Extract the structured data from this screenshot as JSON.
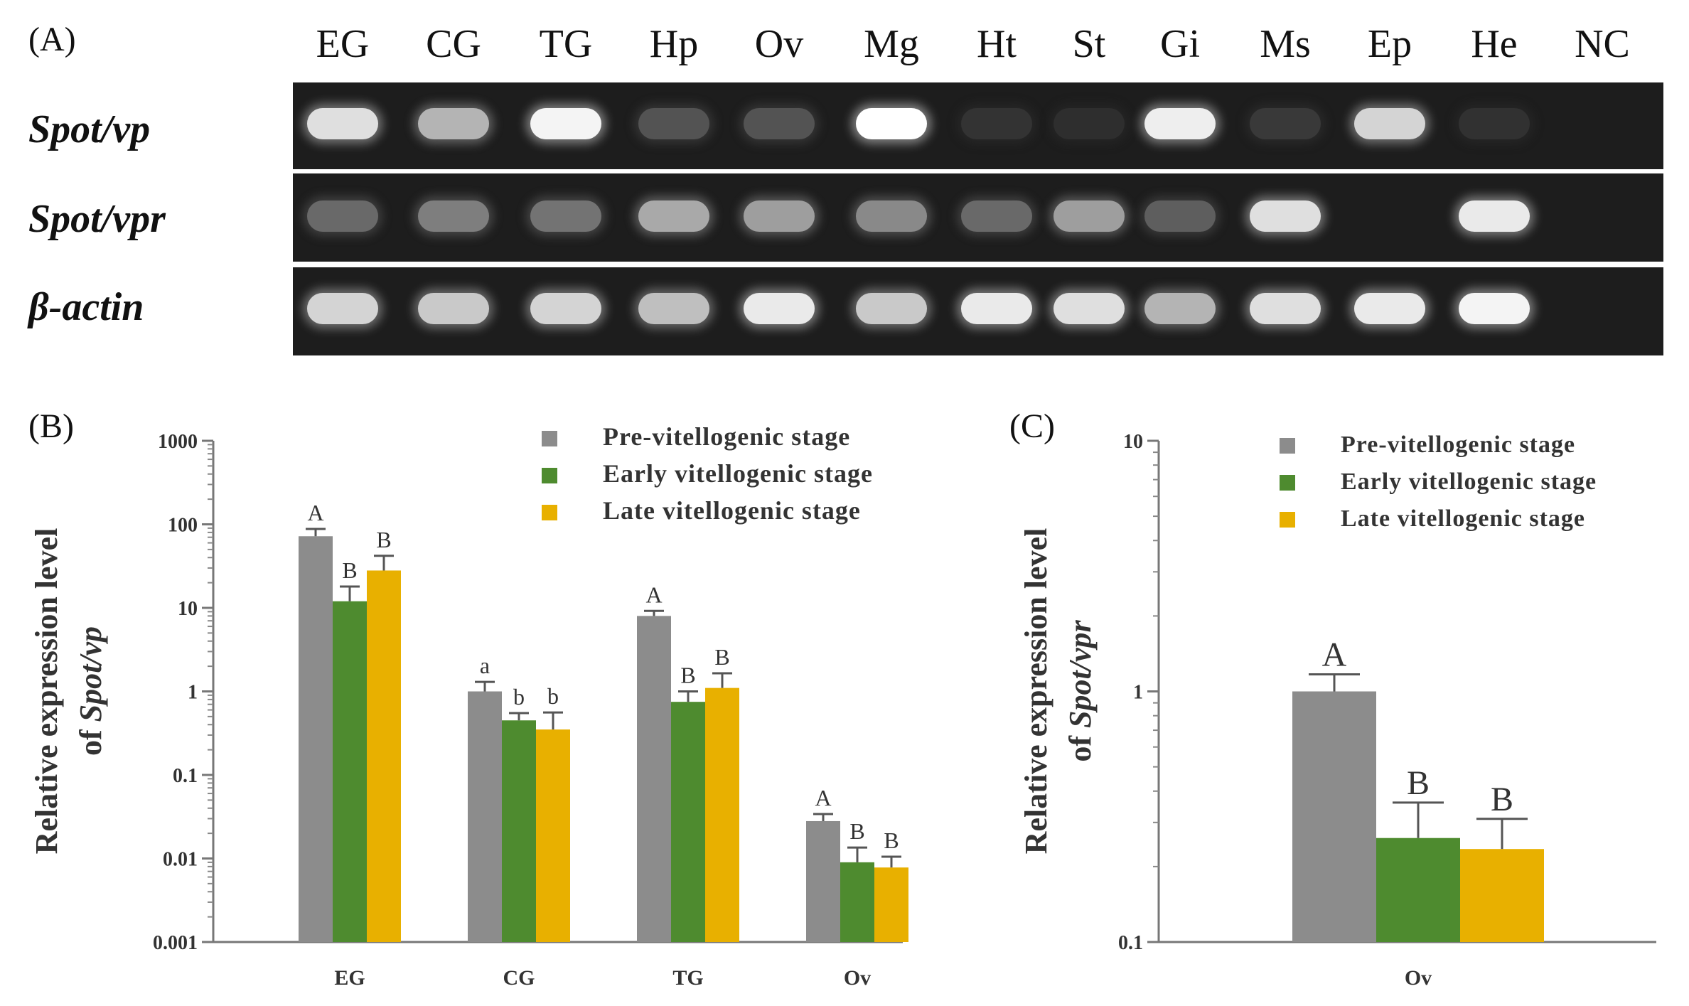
{
  "panel_labels": {
    "a": "(A)",
    "b": "(B)",
    "c": "(C)"
  },
  "gel": {
    "lanes": [
      "EG",
      "CG",
      "TG",
      "Hp",
      "Ov",
      "Mg",
      "Ht",
      "St",
      "Gi",
      "Ms",
      "Ep",
      "He",
      "NC"
    ],
    "rows": [
      {
        "gene": "Spot/vp",
        "intensity": [
          0.85,
          0.65,
          0.95,
          0.2,
          0.2,
          1.0,
          0.05,
          0.03,
          0.92,
          0.08,
          0.8,
          0.04,
          0.0
        ]
      },
      {
        "gene": "Spot/vpr",
        "intensity": [
          0.3,
          0.4,
          0.35,
          0.6,
          0.55,
          0.45,
          0.3,
          0.55,
          0.25,
          0.85,
          0.0,
          0.9,
          0.0
        ]
      },
      {
        "gene": "β-actin",
        "intensity": [
          0.8,
          0.75,
          0.8,
          0.7,
          0.9,
          0.75,
          0.9,
          0.85,
          0.65,
          0.85,
          0.9,
          0.95,
          0.0
        ]
      }
    ]
  },
  "chart_data": [
    {
      "type": "bar",
      "panel": "B",
      "scale": "log",
      "ylabel_line1": "Relative expression level",
      "ylabel_line2_prefix": "of ",
      "ylabel_line2_italic": "Spot/vp",
      "ylim": [
        0.001,
        1000
      ],
      "yticks": [
        0.001,
        0.01,
        0.1,
        1,
        10,
        100,
        1000
      ],
      "ytick_labels": [
        "0.001",
        "0.01",
        "0.1",
        "1",
        "10",
        "100",
        "1000"
      ],
      "categories": [
        "EG",
        "CG",
        "TG",
        "Ov"
      ],
      "series": [
        {
          "name": "Pre-vitellogenic stage",
          "color": "#8c8c8c",
          "values": [
            72,
            1.0,
            8.0,
            0.028
          ],
          "errors": [
            88,
            1.3,
            9.2,
            0.034
          ],
          "letters": [
            "A",
            "a",
            "A",
            "A"
          ]
        },
        {
          "name": "Early vitellogenic stage",
          "color": "#4e8b2f",
          "values": [
            12,
            0.45,
            0.75,
            0.009
          ],
          "errors": [
            18,
            0.55,
            1.0,
            0.0135
          ],
          "letters": [
            "B",
            "b",
            "B",
            "B"
          ]
        },
        {
          "name": "Late vitellogenic stage",
          "color": "#e8b000",
          "values": [
            28,
            0.35,
            1.1,
            0.0078
          ],
          "errors": [
            42,
            0.56,
            1.65,
            0.0105
          ],
          "letters": [
            "B",
            "b",
            "B",
            "B"
          ]
        }
      ]
    },
    {
      "type": "bar",
      "panel": "C",
      "scale": "log",
      "ylabel_line1": "Relative expression level",
      "ylabel_line2_prefix": "of ",
      "ylabel_line2_italic": "Spot/vpr",
      "ylim": [
        0.1,
        10
      ],
      "yticks": [
        0.1,
        1,
        10
      ],
      "ytick_labels": [
        "0.1",
        "1",
        "10"
      ],
      "categories": [
        "Ov"
      ],
      "series": [
        {
          "name": "Pre-vitellogenic stage",
          "color": "#8c8c8c",
          "values": [
            1.0
          ],
          "errors": [
            1.17
          ],
          "letters": [
            "A"
          ]
        },
        {
          "name": "Early vitellogenic stage",
          "color": "#4e8b2f",
          "values": [
            0.26
          ],
          "errors": [
            0.36
          ],
          "letters": [
            "B"
          ]
        },
        {
          "name": "Late vitellogenic stage",
          "color": "#e8b000",
          "values": [
            0.235
          ],
          "errors": [
            0.31
          ],
          "letters": [
            "B"
          ]
        }
      ]
    }
  ]
}
